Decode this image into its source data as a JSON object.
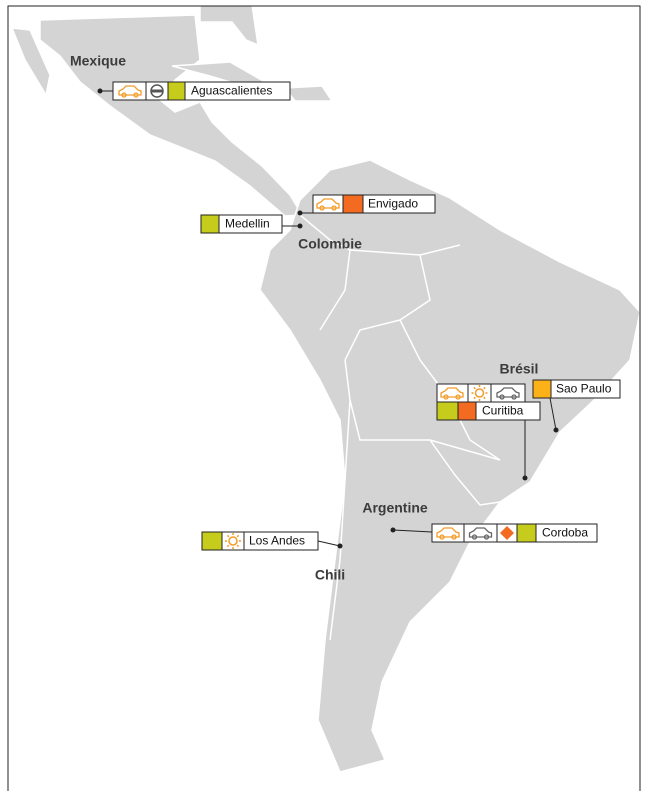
{
  "countries": [
    {
      "label": "Mexique"
    },
    {
      "label": "Colombie"
    },
    {
      "label": "Brésil"
    },
    {
      "label": "Argentine"
    },
    {
      "label": "Chili"
    }
  ],
  "sites": [
    {
      "name": "Aguascalientes"
    },
    {
      "name": "Envigado"
    },
    {
      "name": "Medellin"
    },
    {
      "name": "Sao Paulo"
    },
    {
      "name": "Curitiba"
    },
    {
      "name": "Los Andes"
    },
    {
      "name": "Cordoba"
    }
  ]
}
